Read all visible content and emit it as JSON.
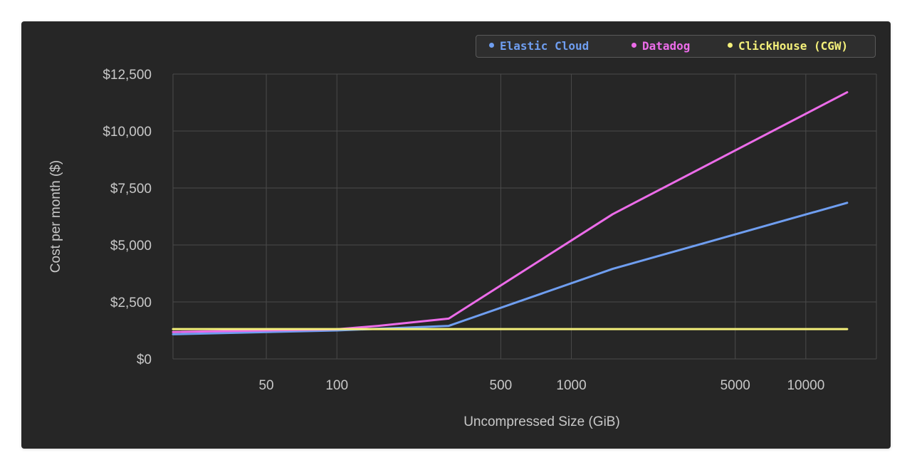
{
  "chart_data": {
    "type": "line",
    "title": "",
    "xlabel": "Uncompressed Size (GiB)",
    "ylabel": "Cost per month ($)",
    "x_scale": "log",
    "xlim": [
      20,
      20000
    ],
    "ylim": [
      0,
      12500
    ],
    "x_ticks": [
      {
        "value": 50,
        "label": "50"
      },
      {
        "value": 100,
        "label": "100"
      },
      {
        "value": 500,
        "label": "500"
      },
      {
        "value": 1000,
        "label": "1000"
      },
      {
        "value": 5000,
        "label": "5000"
      },
      {
        "value": 10000,
        "label": "10000"
      }
    ],
    "y_ticks": [
      {
        "value": 0,
        "label": "$0"
      },
      {
        "value": 2500,
        "label": "$2,500"
      },
      {
        "value": 5000,
        "label": "$5,000"
      },
      {
        "value": 7500,
        "label": "$7,500"
      },
      {
        "value": 10000,
        "label": "$10,000"
      },
      {
        "value": 12500,
        "label": "$12,500"
      }
    ],
    "grid": true,
    "legend_position": "top-right",
    "series": [
      {
        "name": "Elastic Cloud",
        "color": "#6f9ef0",
        "x": [
          20,
          100,
          300,
          1500,
          15000
        ],
        "y": [
          1080,
          1250,
          1450,
          3950,
          6850
        ]
      },
      {
        "name": "Datadog",
        "color": "#ec6ce9",
        "x": [
          20,
          100,
          150,
          300,
          1500,
          15000
        ],
        "y": [
          1180,
          1300,
          1450,
          1770,
          6350,
          11700
        ]
      },
      {
        "name": "ClickHouse (CGW)",
        "color": "#f4f07a",
        "x": [
          20,
          15000
        ],
        "y": [
          1310,
          1310
        ]
      }
    ]
  }
}
